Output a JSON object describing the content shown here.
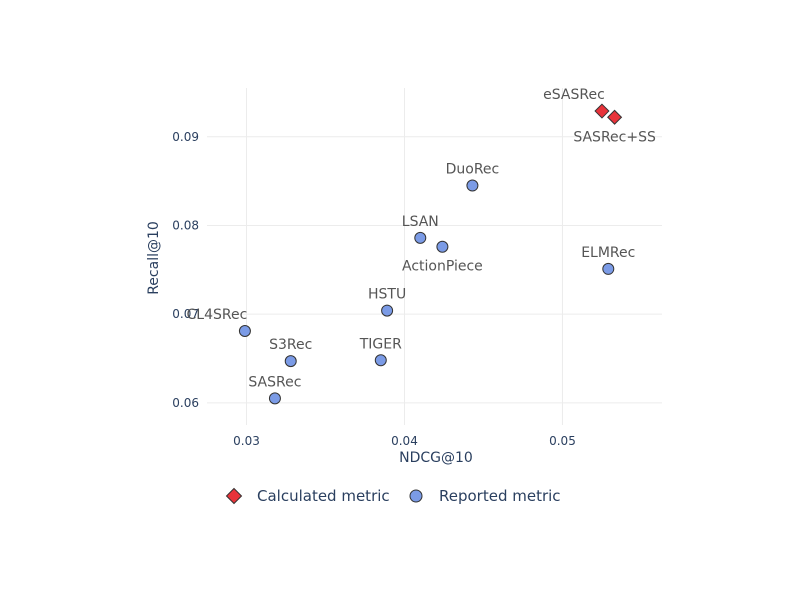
{
  "chart_data": {
    "type": "scatter",
    "title": "",
    "xlabel": "NDCG@10",
    "ylabel": "Recall@10",
    "xlim": [
      0.0275,
      0.0563
    ],
    "ylim": [
      0.0575,
      0.0955
    ],
    "x_ticks": [
      0.03,
      0.04,
      0.05
    ],
    "y_ticks": [
      0.06,
      0.07,
      0.08,
      0.09
    ],
    "grid": true,
    "legend_position": "bottom",
    "series": [
      {
        "name": "Calculated metric",
        "marker": "diamond",
        "color": "#e8333a",
        "points": [
          {
            "label": "eSASRec",
            "x": 0.0525,
            "y": 0.0929,
            "label_pos": "above-left"
          },
          {
            "label": "SASRec+SS",
            "x": 0.0533,
            "y": 0.0922,
            "label_pos": "below"
          }
        ]
      },
      {
        "name": "Reported metric",
        "marker": "circle",
        "color": "#7b9be6",
        "points": [
          {
            "label": "DuoRec",
            "x": 0.0443,
            "y": 0.0845,
            "label_pos": "above"
          },
          {
            "label": "LSAN",
            "x": 0.041,
            "y": 0.0786,
            "label_pos": "above"
          },
          {
            "label": "ActionPiece",
            "x": 0.0424,
            "y": 0.0776,
            "label_pos": "below"
          },
          {
            "label": "ELMRec",
            "x": 0.0529,
            "y": 0.0751,
            "label_pos": "above"
          },
          {
            "label": "HSTU",
            "x": 0.0389,
            "y": 0.0704,
            "label_pos": "above"
          },
          {
            "label": "CL4SRec",
            "x": 0.0299,
            "y": 0.0681,
            "label_pos": "above-left"
          },
          {
            "label": "S3Rec",
            "x": 0.0328,
            "y": 0.0647,
            "label_pos": "above"
          },
          {
            "label": "TIGER",
            "x": 0.0385,
            "y": 0.0648,
            "label_pos": "above"
          },
          {
            "label": "SASRec",
            "x": 0.0318,
            "y": 0.0605,
            "label_pos": "above"
          }
        ]
      }
    ]
  }
}
